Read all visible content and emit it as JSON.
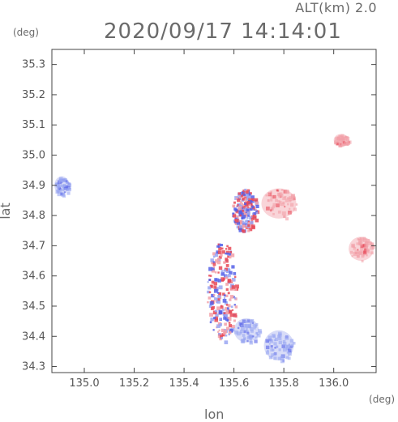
{
  "header": {
    "altitude": "ALT(km) 2.0",
    "timestamp": "2020/09/17 14:14:01"
  },
  "axes": {
    "xlabel": "lon",
    "ylabel": "lat",
    "x_unit": "(deg)",
    "y_unit": "(deg)",
    "xlim": [
      134.87,
      136.17
    ],
    "ylim": [
      34.28,
      35.35
    ],
    "x_ticks": [
      "135.0",
      "135.2",
      "135.4",
      "135.6",
      "135.8",
      "136.0"
    ],
    "x_tick_values": [
      135.0,
      135.2,
      135.4,
      135.6,
      135.8,
      136.0
    ],
    "y_ticks": [
      "34.3",
      "34.4",
      "34.5",
      "34.6",
      "34.7",
      "34.8",
      "34.9",
      "35.0",
      "35.1",
      "35.2",
      "35.3"
    ],
    "y_tick_values": [
      34.3,
      34.4,
      34.5,
      34.6,
      34.7,
      34.8,
      34.9,
      35.0,
      35.1,
      35.2,
      35.3
    ]
  },
  "colors": {
    "approaching": "#9aa6f2",
    "receding": "#f2a0a8",
    "strong_approaching": "#5560e8",
    "strong_receding": "#e84a58",
    "frame": "#444444"
  },
  "echo_regions": [
    {
      "name": "northeast-red-cell",
      "lon": 135.78,
      "lat": 34.84,
      "rlon": 0.07,
      "rlat": 0.05,
      "sign": "receding"
    },
    {
      "name": "east-red-cell",
      "lon": 136.11,
      "lat": 34.69,
      "rlon": 0.05,
      "rlat": 0.04,
      "sign": "receding"
    },
    {
      "name": "north-red-cell",
      "lon": 136.03,
      "lat": 35.05,
      "rlon": 0.03,
      "rlat": 0.02,
      "sign": "receding"
    },
    {
      "name": "west-blue-cell",
      "lon": 134.91,
      "lat": 34.9,
      "rlon": 0.03,
      "rlat": 0.03,
      "sign": "approaching"
    },
    {
      "name": "south-blue-cell-1",
      "lon": 135.78,
      "lat": 34.37,
      "rlon": 0.06,
      "rlat": 0.05,
      "sign": "approaching"
    },
    {
      "name": "south-blue-cell-2",
      "lon": 135.65,
      "lat": 34.42,
      "rlon": 0.05,
      "rlat": 0.04,
      "sign": "approaching"
    },
    {
      "name": "central-mixed-cluster",
      "lon": 135.55,
      "lat": 34.55,
      "rlon": 0.06,
      "rlat": 0.17,
      "sign": "mixed"
    },
    {
      "name": "central-north-mixed",
      "lon": 135.64,
      "lat": 34.82,
      "rlon": 0.05,
      "rlat": 0.07,
      "sign": "mixed"
    }
  ]
}
